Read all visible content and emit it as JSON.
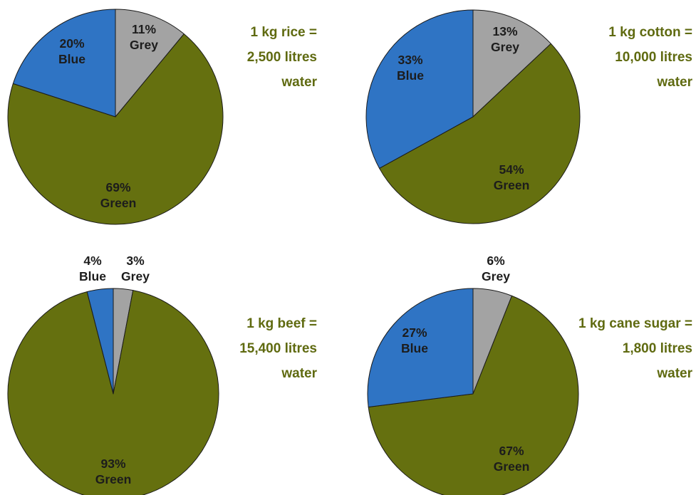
{
  "colors": {
    "Green": "#65700f",
    "Blue": "#2f74c4",
    "Grey": "#a3a3a3",
    "caption": "#5f6a10"
  },
  "chart_data": [
    {
      "type": "pie",
      "caption": [
        "1 kg rice =",
        "2,500 litres",
        "water"
      ],
      "categories": [
        "Grey",
        "Green",
        "Blue"
      ],
      "values": [
        11,
        69,
        20
      ],
      "labels": [
        "11%",
        "69%",
        "20%"
      ]
    },
    {
      "type": "pie",
      "caption": [
        "1 kg cotton =",
        "10,000 litres",
        "water"
      ],
      "categories": [
        "Grey",
        "Green",
        "Blue"
      ],
      "values": [
        13,
        54,
        33
      ],
      "labels": [
        "13%",
        "54%",
        "33%"
      ]
    },
    {
      "type": "pie",
      "caption": [
        "1 kg beef =",
        "15,400 litres",
        "water"
      ],
      "categories": [
        "Grey",
        "Green",
        "Blue"
      ],
      "values": [
        3,
        93,
        4
      ],
      "labels": [
        "3%",
        "93%",
        "4%"
      ]
    },
    {
      "type": "pie",
      "caption": [
        "1 kg cane sugar =",
        "1,800 litres",
        "water"
      ],
      "categories": [
        "Grey",
        "Green",
        "Blue"
      ],
      "values": [
        6,
        67,
        27
      ],
      "labels": [
        "6%",
        "67%",
        "27%"
      ]
    }
  ]
}
